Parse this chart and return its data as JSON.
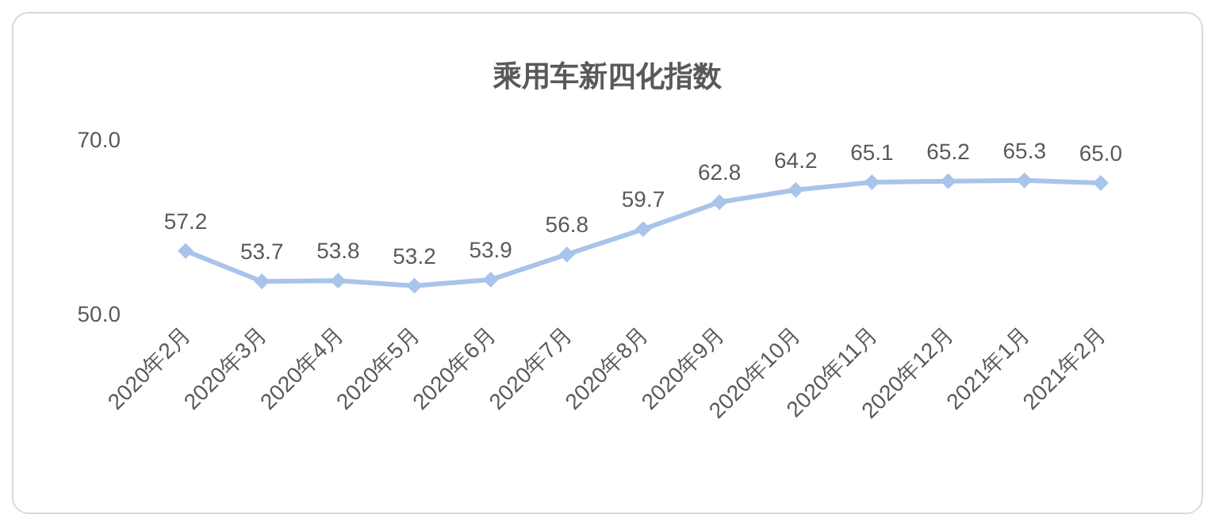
{
  "chart_data": {
    "type": "line",
    "title": "乘用车新四化指数",
    "categories": [
      "2020年2月",
      "2020年3月",
      "2020年4月",
      "2020年5月",
      "2020年6月",
      "2020年7月",
      "2020年8月",
      "2020年9月",
      "2020年10月",
      "2020年11月",
      "2020年12月",
      "2021年1月",
      "2021年2月"
    ],
    "values": [
      57.2,
      53.7,
      53.8,
      53.2,
      53.9,
      56.8,
      59.7,
      62.8,
      64.2,
      65.1,
      65.2,
      65.3,
      65.0
    ],
    "value_labels": [
      "57.2",
      "53.7",
      "53.8",
      "53.2",
      "53.9",
      "56.8",
      "59.7",
      "62.8",
      "64.2",
      "65.1",
      "65.2",
      "65.3",
      "65.0"
    ],
    "color": "#a9c4eb",
    "marker": "diamond",
    "ylim": [
      50,
      70
    ],
    "yticks": [
      {
        "value": 50,
        "label": "50.0"
      },
      {
        "value": 70,
        "label": "70.0"
      }
    ]
  }
}
